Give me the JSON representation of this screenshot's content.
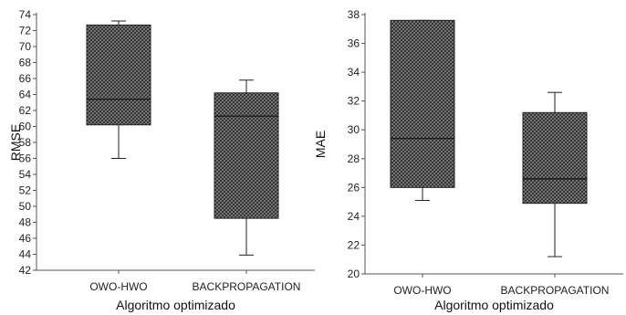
{
  "chart_data": [
    {
      "type": "box",
      "xlabel": "Algoritmo optimizado",
      "ylabel": "RMSE",
      "ylim": [
        42,
        74
      ],
      "yticks": [
        42,
        44,
        46,
        48,
        50,
        52,
        54,
        56,
        58,
        60,
        62,
        64,
        66,
        68,
        70,
        72,
        74
      ],
      "categories": [
        "OWO-HWO",
        "BACKPROPAGATION"
      ],
      "boxes": [
        {
          "min": 56.0,
          "q1": 60.2,
          "median": 63.4,
          "q3": 72.7,
          "max": 73.2
        },
        {
          "min": 43.9,
          "q1": 48.5,
          "median": 61.3,
          "q3": 64.2,
          "max": 65.8
        }
      ]
    },
    {
      "type": "box",
      "xlabel": "Algoritmo optimizado",
      "ylabel": "MAE",
      "ylim": [
        20,
        38
      ],
      "yticks": [
        20,
        22,
        24,
        26,
        28,
        30,
        32,
        34,
        36,
        38
      ],
      "categories": [
        "OWO-HWO",
        "BACKPROPAGATION"
      ],
      "boxes": [
        {
          "min": 25.1,
          "q1": 26.0,
          "median": 29.4,
          "q3": 37.6,
          "max": 37.6
        },
        {
          "min": 21.2,
          "q1": 24.9,
          "median": 26.6,
          "q3": 31.2,
          "max": 32.6
        }
      ]
    }
  ],
  "colors": {
    "box_fill": "#7a7a7a",
    "hatch": "#2b2b2b",
    "axis": "#555555"
  }
}
